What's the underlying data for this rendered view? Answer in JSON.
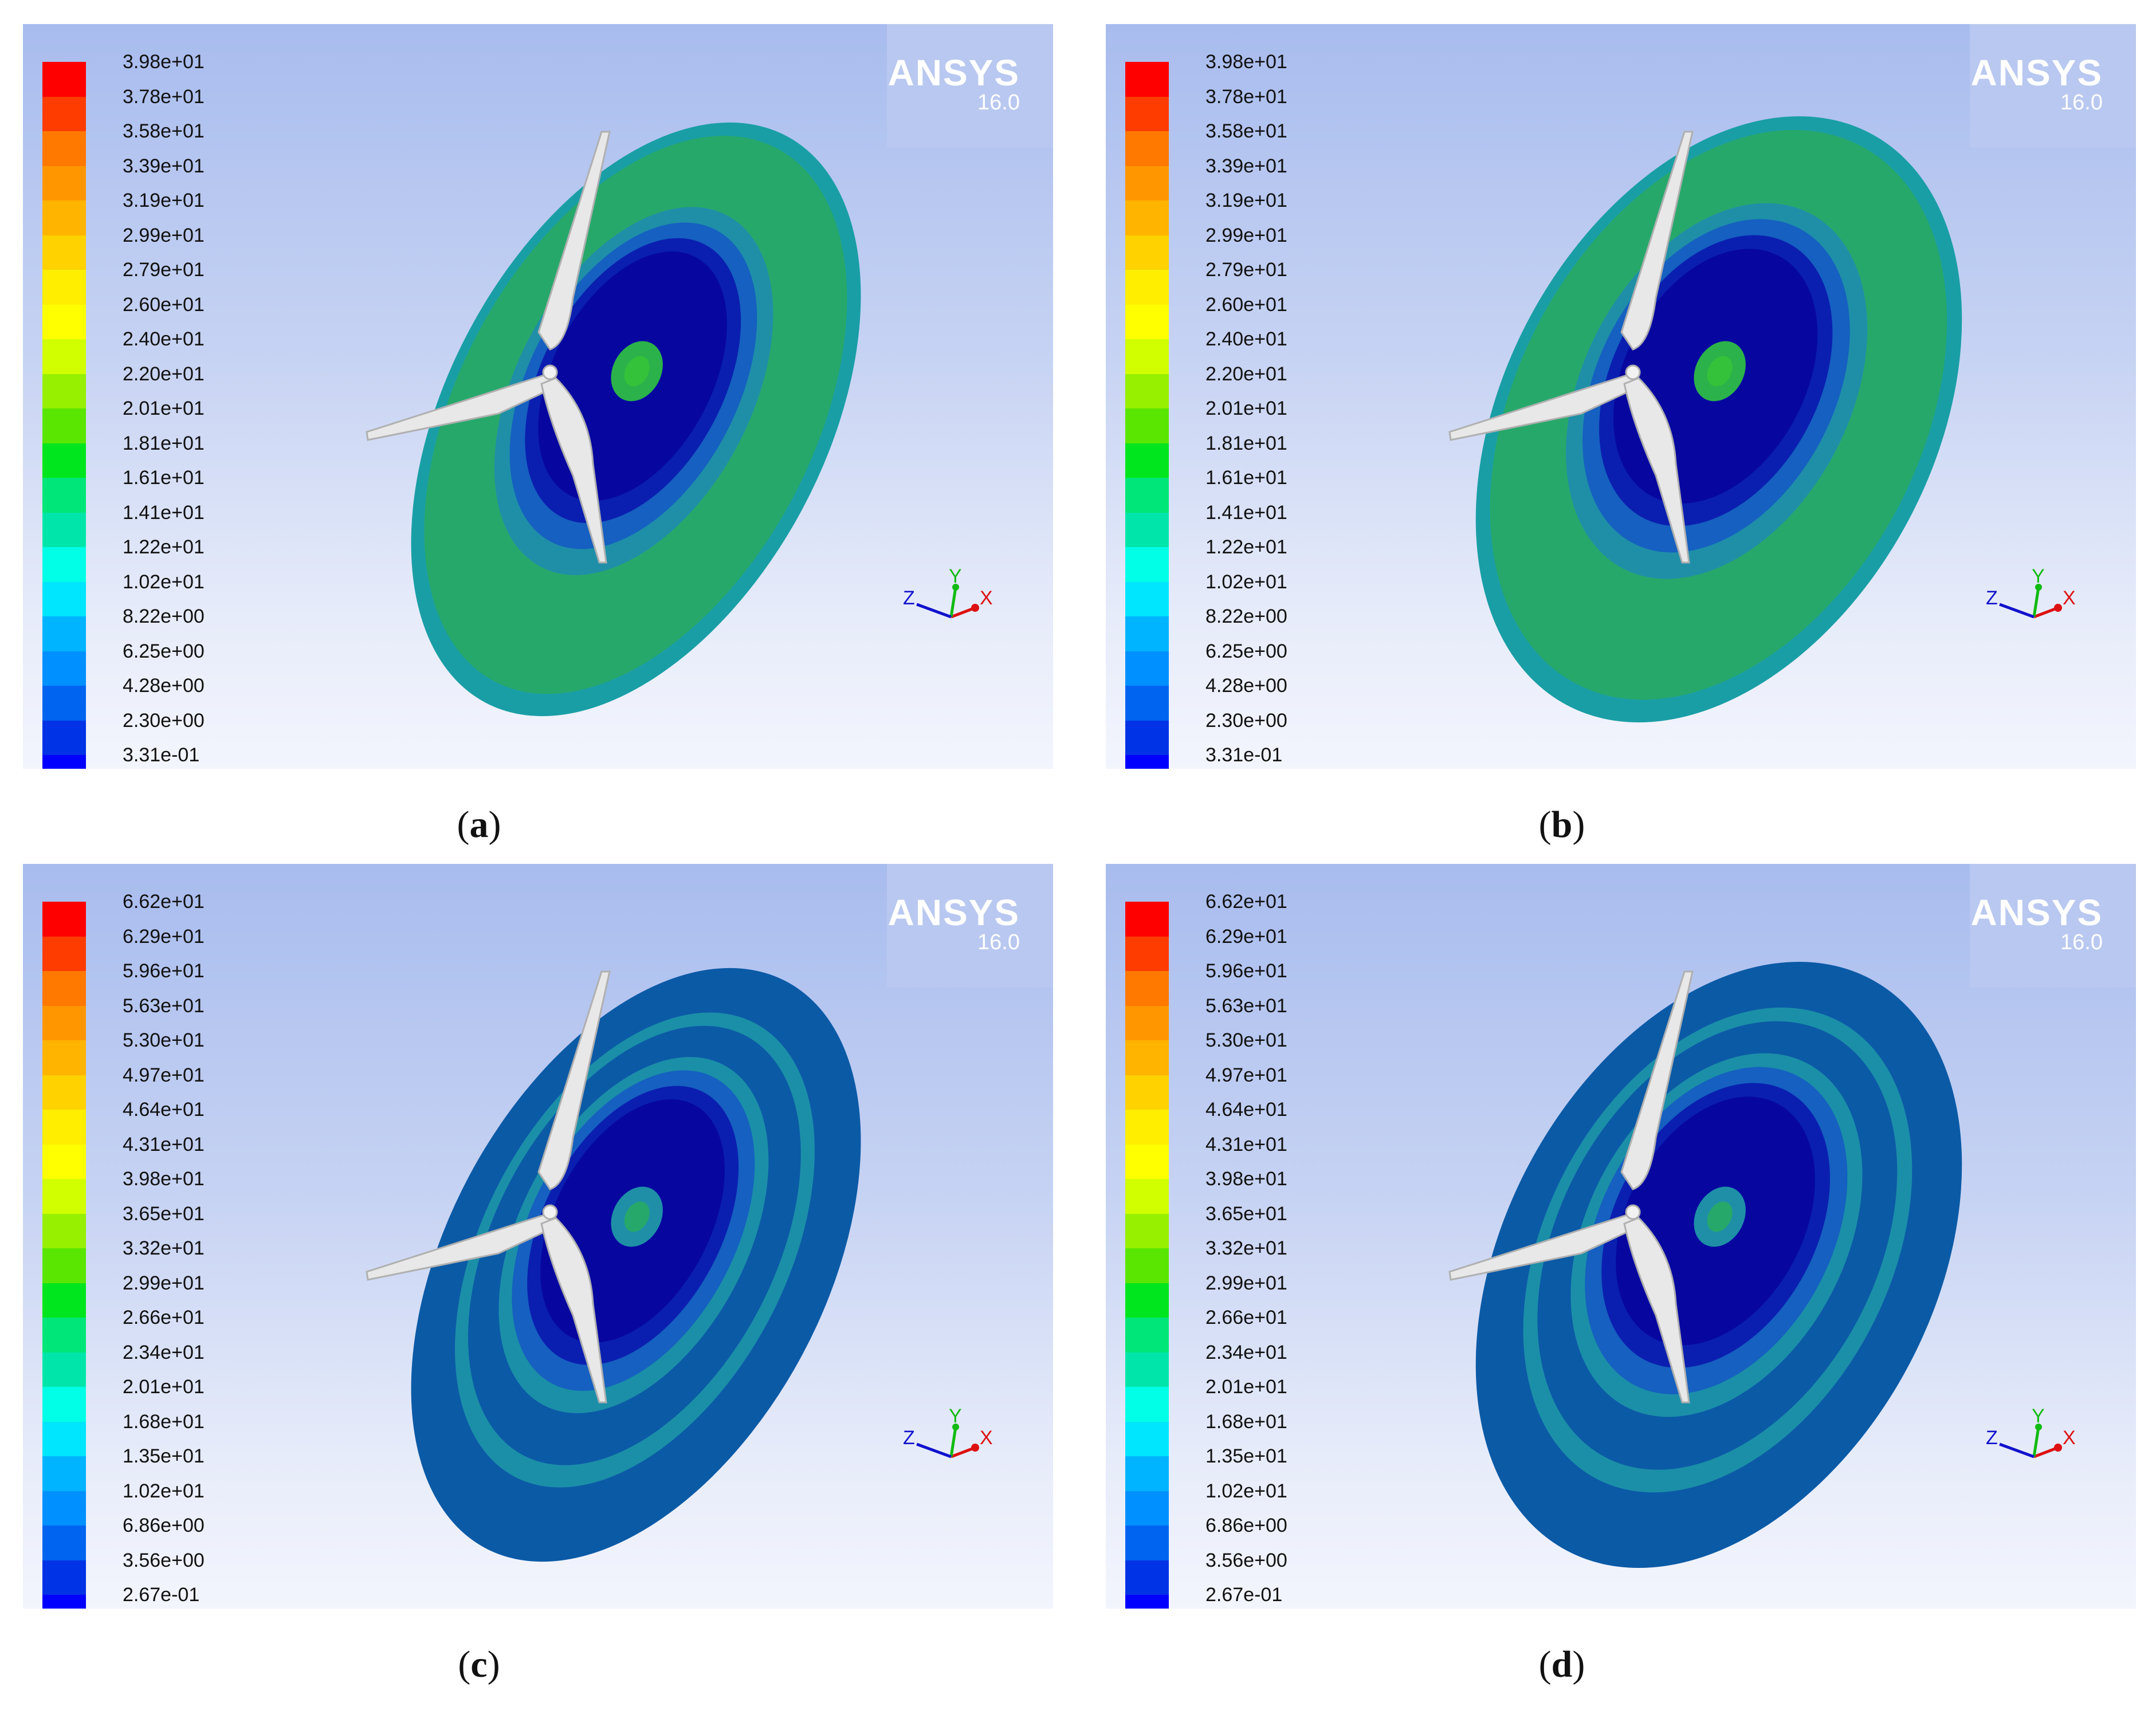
{
  "panels": [
    {
      "id": "a",
      "caption_letter": "a",
      "brand": "ANSYS",
      "version": "16.0",
      "legend": [
        "3.98e+01",
        "3.78e+01",
        "3.58e+01",
        "3.39e+01",
        "3.19e+01",
        "2.99e+01",
        "2.79e+01",
        "2.60e+01",
        "2.40e+01",
        "2.20e+01",
        "2.01e+01",
        "1.81e+01",
        "1.61e+01",
        "1.41e+01",
        "1.22e+01",
        "1.02e+01",
        "8.22e+00",
        "6.25e+00",
        "4.28e+00",
        "2.30e+00",
        "3.31e-01"
      ],
      "axis_labels": {
        "x": "X",
        "y": "Y",
        "z": "Z"
      }
    },
    {
      "id": "b",
      "caption_letter": "b",
      "brand": "ANSYS",
      "version": "16.0",
      "legend": [
        "3.98e+01",
        "3.78e+01",
        "3.58e+01",
        "3.39e+01",
        "3.19e+01",
        "2.99e+01",
        "2.79e+01",
        "2.60e+01",
        "2.40e+01",
        "2.20e+01",
        "2.01e+01",
        "1.81e+01",
        "1.61e+01",
        "1.41e+01",
        "1.22e+01",
        "1.02e+01",
        "8.22e+00",
        "6.25e+00",
        "4.28e+00",
        "2.30e+00",
        "3.31e-01"
      ],
      "axis_labels": {
        "x": "X",
        "y": "Y",
        "z": "Z"
      }
    },
    {
      "id": "c",
      "caption_letter": "c",
      "brand": "ANSYS",
      "version": "16.0",
      "legend": [
        "6.62e+01",
        "6.29e+01",
        "5.96e+01",
        "5.63e+01",
        "5.30e+01",
        "4.97e+01",
        "4.64e+01",
        "4.31e+01",
        "3.98e+01",
        "3.65e+01",
        "3.32e+01",
        "2.99e+01",
        "2.66e+01",
        "2.34e+01",
        "2.01e+01",
        "1.68e+01",
        "1.35e+01",
        "1.02e+01",
        "6.86e+00",
        "3.56e+00",
        "2.67e-01"
      ],
      "axis_labels": {
        "x": "X",
        "y": "Y",
        "z": "Z"
      }
    },
    {
      "id": "d",
      "caption_letter": "d",
      "brand": "ANSYS",
      "version": "16.0",
      "legend": [
        "6.62e+01",
        "6.29e+01",
        "5.96e+01",
        "5.63e+01",
        "5.30e+01",
        "4.97e+01",
        "4.64e+01",
        "4.31e+01",
        "3.98e+01",
        "3.65e+01",
        "3.32e+01",
        "2.99e+01",
        "2.66e+01",
        "2.34e+01",
        "2.01e+01",
        "1.68e+01",
        "1.35e+01",
        "1.02e+01",
        "6.86e+00",
        "3.56e+00",
        "2.67e-01"
      ],
      "axis_labels": {
        "x": "X",
        "y": "Y",
        "z": "Z"
      }
    }
  ],
  "colormap": [
    "#ff0000",
    "#ff3c00",
    "#ff7800",
    "#ff9600",
    "#ffb400",
    "#ffd200",
    "#ffee00",
    "#ffff00",
    "#d2ff00",
    "#96f000",
    "#5ae600",
    "#00e61e",
    "#00e678",
    "#00e6aa",
    "#00ffe6",
    "#00e6ff",
    "#00b4ff",
    "#0090ff",
    "#0064f0",
    "#0032e6",
    "#0000ff"
  ],
  "contour_colors": {
    "outer_ring": "#199ea6",
    "mid_green": "#27a86b",
    "ring_teal": "#1f8fa8",
    "ring_blue": "#1560c0",
    "inner_blue": "#0a1fb0",
    "deep_blue": "#0707a0",
    "core_green": "#2cb24a",
    "low_blue_outer": "#0b5aa6",
    "low_blue_band": "#1b8fa8"
  }
}
